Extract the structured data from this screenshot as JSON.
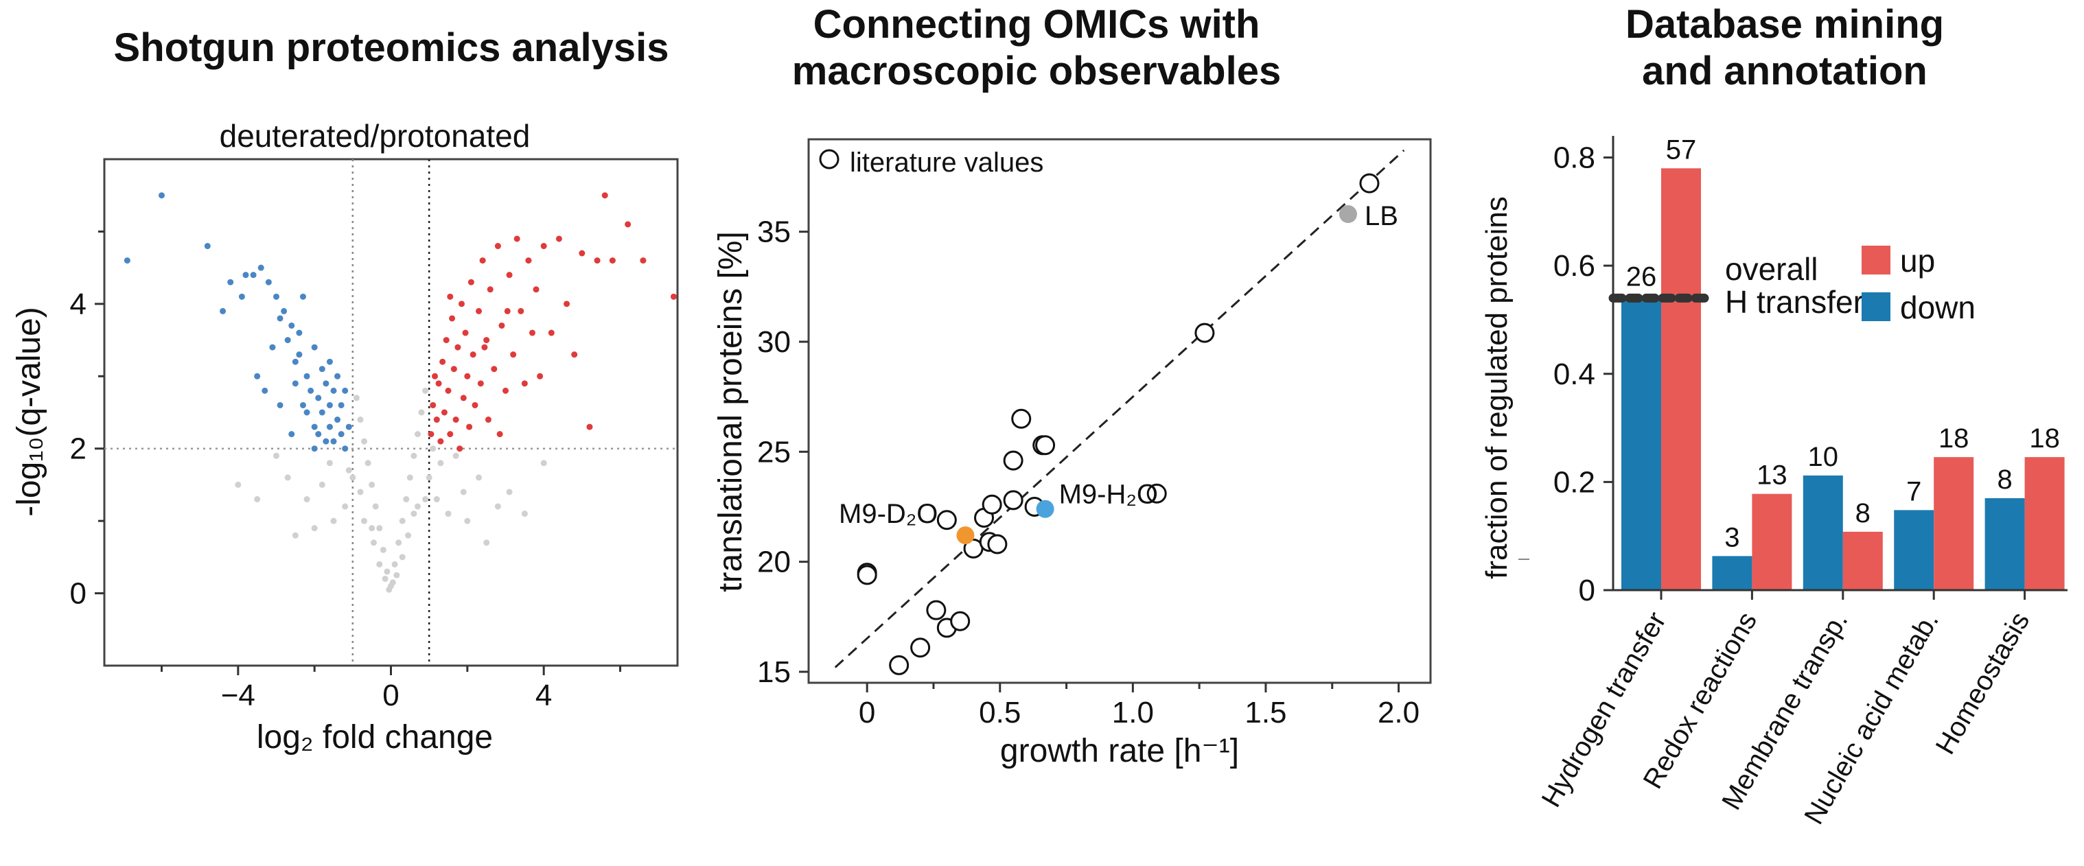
{
  "colors": {
    "up": "#e85a56",
    "down": "#1b7bb0",
    "volcano_up": "#e03a3a",
    "volcano_down": "#4a86c4",
    "volcano_ns": "#d0d0d0",
    "accent_orange": "#f0962e",
    "accent_blue": "#4aa3dc",
    "accent_grey": "#a8a8a8"
  },
  "panels": {
    "a": {
      "title": "Shotgun proteomics analysis"
    },
    "b": {
      "title": "Connecting OMICs with\nmacroscopic observables"
    },
    "c": {
      "title": "Database mining\nand annotation"
    }
  },
  "chart_data": [
    {
      "type": "scatter",
      "title": "deuterated/protonated",
      "xlabel": "log₂ fold change",
      "ylabel": "-log₁₀(q-value)",
      "xlim": [
        -7.5,
        7.5
      ],
      "ylim": [
        -1,
        6
      ],
      "xticks": [
        -4,
        0,
        4
      ],
      "yticks": [
        0,
        2,
        4
      ],
      "threshold_y": 2,
      "threshold_x": [
        -1,
        1
      ],
      "grid": false,
      "series": [
        {
          "color_key": "volcano_down",
          "points": [
            [
              -6.9,
              4.6
            ],
            [
              -6.0,
              5.5
            ],
            [
              -4.8,
              4.8
            ],
            [
              -4.4,
              3.9
            ],
            [
              -4.2,
              4.3
            ],
            [
              -3.9,
              4.1
            ],
            [
              -3.8,
              4.4
            ],
            [
              -3.6,
              4.4
            ],
            [
              -3.4,
              4.5
            ],
            [
              -3.2,
              4.3
            ],
            [
              -3.0,
              4.1
            ],
            [
              -2.9,
              3.8
            ],
            [
              -2.7,
              3.5
            ],
            [
              -2.6,
              3.7
            ],
            [
              -2.5,
              3.2
            ],
            [
              -2.5,
              2.9
            ],
            [
              -2.4,
              3.3
            ],
            [
              -2.3,
              2.6
            ],
            [
              -2.2,
              3.0
            ],
            [
              -2.2,
              2.5
            ],
            [
              -2.1,
              2.8
            ],
            [
              -2.0,
              3.4
            ],
            [
              -2.0,
              2.3
            ],
            [
              -1.9,
              2.7
            ],
            [
              -1.9,
              2.2
            ],
            [
              -1.8,
              3.1
            ],
            [
              -1.8,
              2.5
            ],
            [
              -1.7,
              2.9
            ],
            [
              -1.7,
              2.1
            ],
            [
              -1.6,
              2.6
            ],
            [
              -1.6,
              2.3
            ],
            [
              -1.5,
              2.8
            ],
            [
              -1.5,
              2.1
            ],
            [
              -1.4,
              2.4
            ],
            [
              -1.4,
              3.0
            ],
            [
              -1.3,
              2.2
            ],
            [
              -1.3,
              2.6
            ],
            [
              -1.2,
              2.0
            ],
            [
              -1.2,
              2.8
            ],
            [
              -1.1,
              2.3
            ],
            [
              -2.8,
              3.9
            ],
            [
              -2.4,
              3.6
            ],
            [
              -3.1,
              3.4
            ],
            [
              -2.6,
              2.2
            ],
            [
              -2.0,
              2.0
            ],
            [
              -1.6,
              3.2
            ],
            [
              -3.3,
              2.8
            ],
            [
              -2.9,
              2.6
            ],
            [
              -3.5,
              3.0
            ],
            [
              -2.3,
              4.1
            ]
          ]
        },
        {
          "color_key": "volcano_up",
          "points": [
            [
              1.05,
              2.2
            ],
            [
              1.1,
              2.6
            ],
            [
              1.15,
              3.0
            ],
            [
              1.2,
              2.4
            ],
            [
              1.25,
              2.9
            ],
            [
              1.3,
              2.1
            ],
            [
              1.35,
              3.2
            ],
            [
              1.4,
              2.5
            ],
            [
              1.45,
              3.5
            ],
            [
              1.5,
              2.8
            ],
            [
              1.55,
              2.2
            ],
            [
              1.6,
              3.8
            ],
            [
              1.65,
              3.1
            ],
            [
              1.7,
              2.4
            ],
            [
              1.75,
              3.4
            ],
            [
              1.8,
              2.0
            ],
            [
              1.85,
              4.0
            ],
            [
              1.9,
              2.7
            ],
            [
              1.95,
              3.6
            ],
            [
              2.0,
              3.0
            ],
            [
              2.05,
              2.3
            ],
            [
              2.1,
              4.3
            ],
            [
              2.15,
              3.3
            ],
            [
              2.2,
              2.6
            ],
            [
              2.3,
              3.9
            ],
            [
              2.35,
              2.9
            ],
            [
              2.4,
              4.6
            ],
            [
              2.5,
              3.5
            ],
            [
              2.55,
              2.4
            ],
            [
              2.6,
              4.2
            ],
            [
              2.7,
              3.1
            ],
            [
              2.8,
              4.8
            ],
            [
              2.9,
              3.7
            ],
            [
              3.0,
              2.8
            ],
            [
              3.1,
              4.4
            ],
            [
              3.2,
              3.3
            ],
            [
              3.3,
              4.9
            ],
            [
              3.4,
              3.9
            ],
            [
              3.5,
              2.9
            ],
            [
              3.6,
              4.6
            ],
            [
              3.7,
              3.6
            ],
            [
              3.8,
              4.2
            ],
            [
              3.9,
              3.0
            ],
            [
              4.0,
              4.8
            ],
            [
              4.2,
              3.6
            ],
            [
              4.4,
              4.9
            ],
            [
              4.6,
              4.0
            ],
            [
              4.8,
              3.3
            ],
            [
              5.0,
              4.7
            ],
            [
              5.2,
              2.3
            ],
            [
              5.4,
              4.6
            ],
            [
              5.6,
              5.5
            ],
            [
              5.8,
              4.6
            ],
            [
              6.2,
              5.1
            ],
            [
              6.6,
              4.6
            ],
            [
              7.4,
              4.1
            ],
            [
              2.45,
              3.4
            ],
            [
              2.85,
              2.2
            ],
            [
              1.55,
              4.1
            ],
            [
              3.05,
              3.9
            ]
          ]
        },
        {
          "color_key": "volcano_ns",
          "points": [
            [
              0.0,
              0.1
            ],
            [
              -0.1,
              0.3
            ],
            [
              0.1,
              0.4
            ],
            [
              -0.2,
              0.6
            ],
            [
              0.2,
              0.7
            ],
            [
              -0.3,
              0.9
            ],
            [
              0.3,
              1.0
            ],
            [
              -0.4,
              1.2
            ],
            [
              0.4,
              1.3
            ],
            [
              -0.5,
              1.5
            ],
            [
              0.5,
              1.6
            ],
            [
              -0.6,
              1.8
            ],
            [
              0.6,
              1.9
            ],
            [
              -0.7,
              2.1
            ],
            [
              0.7,
              2.2
            ],
            [
              -0.8,
              2.4
            ],
            [
              0.8,
              2.5
            ],
            [
              -0.9,
              2.7
            ],
            [
              0.9,
              2.8
            ],
            [
              -1.0,
              1.6
            ],
            [
              1.0,
              1.6
            ],
            [
              -1.2,
              1.2
            ],
            [
              1.2,
              1.3
            ],
            [
              -1.5,
              1.0
            ],
            [
              1.5,
              1.1
            ],
            [
              -2.0,
              0.9
            ],
            [
              2.0,
              1.0
            ],
            [
              -2.5,
              0.8
            ],
            [
              2.5,
              0.7
            ],
            [
              -3.0,
              1.9
            ],
            [
              3.1,
              1.4
            ],
            [
              -4.0,
              1.5
            ],
            [
              4.0,
              1.8
            ],
            [
              -1.6,
              1.8
            ],
            [
              1.7,
              1.9
            ],
            [
              -0.3,
              0.4
            ],
            [
              0.3,
              0.5
            ],
            [
              -0.5,
              0.9
            ],
            [
              0.6,
              1.1
            ],
            [
              -0.8,
              1.4
            ],
            [
              0.9,
              1.3
            ],
            [
              -1.1,
              1.7
            ],
            [
              1.3,
              1.8
            ],
            [
              -2.2,
              1.3
            ],
            [
              2.3,
              1.6
            ],
            [
              -0.15,
              0.2
            ],
            [
              0.15,
              0.25
            ],
            [
              -0.45,
              0.7
            ],
            [
              0.45,
              0.8
            ],
            [
              -0.7,
              1.0
            ],
            [
              0.7,
              1.2
            ],
            [
              -1.8,
              1.5
            ],
            [
              1.9,
              1.4
            ],
            [
              2.8,
              1.2
            ],
            [
              -2.7,
              1.6
            ],
            [
              3.5,
              1.1
            ],
            [
              -3.5,
              1.3
            ],
            [
              0.05,
              0.15
            ],
            [
              -0.05,
              0.05
            ],
            [
              1.1,
              2.0
            ]
          ]
        }
      ]
    },
    {
      "type": "scatter",
      "title": "",
      "xlabel": "growth rate [h⁻¹]",
      "ylabel": "translational proteins [%]",
      "xlim": [
        -0.22,
        2.12
      ],
      "ylim": [
        14.5,
        39.2
      ],
      "xticks": [
        0,
        0.5,
        1.0,
        1.5,
        2.0
      ],
      "xtick_labels": [
        "0",
        "0.5",
        "1.0",
        "1.5",
        "2.0"
      ],
      "yticks": [
        15,
        20,
        25,
        30,
        35
      ],
      "grid": false,
      "legend": {
        "label": "literature values",
        "placement": "top-left"
      },
      "fit_line": {
        "x1": -0.12,
        "y1": 15.2,
        "x2": 2.02,
        "y2": 38.7
      },
      "literature_values": [
        [
          0.0,
          19.5
        ],
        [
          0.0,
          19.4
        ],
        [
          0.12,
          15.3
        ],
        [
          0.2,
          16.1
        ],
        [
          0.26,
          17.8
        ],
        [
          0.3,
          17.0
        ],
        [
          0.35,
          17.3
        ],
        [
          0.4,
          20.6
        ],
        [
          0.44,
          22.0
        ],
        [
          0.46,
          20.9
        ],
        [
          0.47,
          22.6
        ],
        [
          0.49,
          20.8
        ],
        [
          0.55,
          24.6
        ],
        [
          0.55,
          22.8
        ],
        [
          0.58,
          26.5
        ],
        [
          0.63,
          22.5
        ],
        [
          0.66,
          25.3
        ],
        [
          0.67,
          25.3
        ],
        [
          1.09,
          23.1
        ],
        [
          1.27,
          30.4
        ],
        [
          1.89,
          37.2
        ],
        [
          0.3,
          21.9
        ]
      ],
      "highlighted": [
        {
          "label": "M9-D₂O",
          "x": 0.37,
          "y": 21.2,
          "color_key": "accent_orange"
        },
        {
          "label": "M9-H₂O",
          "x": 0.67,
          "y": 22.4,
          "color_key": "accent_blue"
        },
        {
          "label": "LB",
          "x": 1.81,
          "y": 35.8,
          "color_key": "accent_grey"
        }
      ]
    },
    {
      "type": "bar",
      "title": "",
      "xlabel": "",
      "ylabel": "fraction of regulated proteins",
      "ylim": [
        0,
        0.84
      ],
      "yticks": [
        0,
        0.2,
        0.4,
        0.6,
        0.8
      ],
      "ytick_labels": [
        "0",
        "0.2",
        "0.4",
        "0.6",
        "0.8"
      ],
      "categories": [
        "Hydrogen transfer",
        "Redox reactions",
        "Membrane transp.",
        "Nucleic acid metab.",
        "Homeostasis"
      ],
      "series": [
        {
          "name": "down",
          "color_key": "down",
          "values": [
            0.545,
            0.063,
            0.212,
            0.148,
            0.17
          ],
          "counts": [
            "26",
            "3",
            "10",
            "7",
            "8"
          ]
        },
        {
          "name": "up",
          "color_key": "up",
          "values": [
            0.78,
            0.178,
            0.108,
            0.246,
            0.246
          ],
          "counts": [
            "57",
            "13",
            "8",
            "18",
            "18"
          ]
        }
      ],
      "overall_line": {
        "value": 0.54,
        "label_line1": "overall",
        "label_line2": "H transfer"
      },
      "legend": {
        "placement": "right",
        "entries": [
          "up",
          "down"
        ]
      },
      "grid": false
    }
  ]
}
